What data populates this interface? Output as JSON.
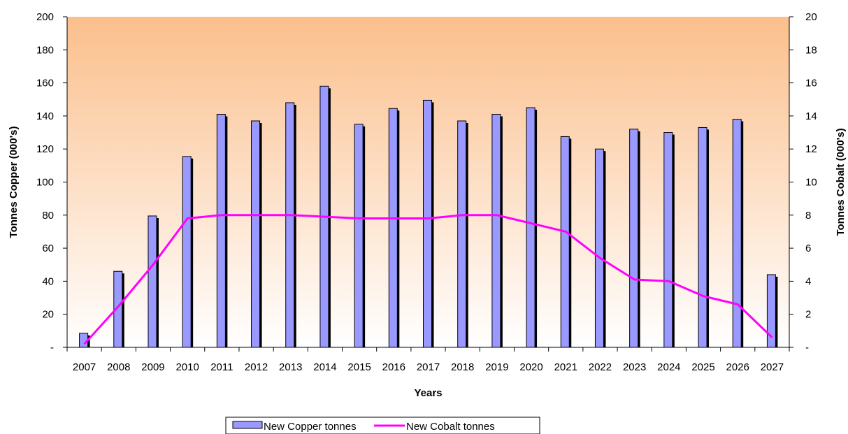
{
  "chart_data": {
    "type": "bar",
    "title": "",
    "xlabel": "Years",
    "ylabel": "Tonnes Copper (000's)",
    "y2label": "Tonnes Cobalt (000's)",
    "categories": [
      "2007",
      "2008",
      "2009",
      "2010",
      "2011",
      "2012",
      "2013",
      "2014",
      "2015",
      "2016",
      "2017",
      "2018",
      "2019",
      "2020",
      "2021",
      "2022",
      "2023",
      "2024",
      "2025",
      "2026",
      "2027"
    ],
    "ylim": [
      0,
      200
    ],
    "y2lim": [
      0,
      20
    ],
    "yticks": [
      "-",
      "20",
      "40",
      "60",
      "80",
      "100",
      "120",
      "140",
      "160",
      "180",
      "200"
    ],
    "y2ticks": [
      "-",
      "2",
      "4",
      "6",
      "8",
      "10",
      "12",
      "14",
      "16",
      "18",
      "20"
    ],
    "series": [
      {
        "name": "New Copper tonnes",
        "type": "bar",
        "axis": "left",
        "color": "#9999ff",
        "values": [
          8.5,
          46,
          79.5,
          115.5,
          141,
          137,
          148,
          158,
          135,
          144.5,
          149.5,
          137,
          141,
          145,
          127.5,
          120,
          132,
          130,
          133,
          138,
          44
        ]
      },
      {
        "name": "New Cobalt tonnes",
        "type": "line",
        "axis": "right",
        "color": "#ff00ff",
        "values": [
          0.2,
          2.5,
          5.0,
          7.8,
          8.0,
          8.0,
          8.0,
          7.9,
          7.8,
          7.8,
          7.8,
          8.0,
          8.0,
          7.5,
          7.0,
          5.4,
          4.1,
          4.0,
          3.1,
          2.6,
          0.6
        ]
      }
    ],
    "gradient": {
      "top": "#fbbf8c",
      "bottom": "#ffffff"
    },
    "grid": false,
    "legend": "bottom-center"
  }
}
